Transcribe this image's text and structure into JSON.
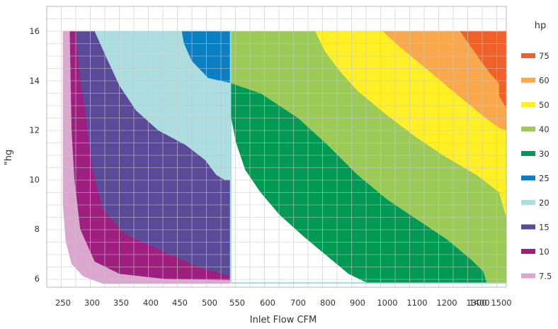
{
  "chart_data": {
    "type": "area",
    "title": "",
    "xlabel": "Inlet Flow CFM",
    "ylabel": "\"hg",
    "xlim": [
      230,
      1510
    ],
    "ylim": [
      5.6,
      16.9
    ],
    "x_ticks": [
      250,
      300,
      350,
      400,
      450,
      500,
      550,
      600,
      700,
      800,
      900,
      1000,
      1100,
      1200,
      1300,
      1400,
      1500
    ],
    "y_ticks": [
      6,
      8,
      10,
      12,
      14,
      16
    ],
    "grid": true,
    "legend_title": "hp",
    "legend_position": "right",
    "legend": [
      {
        "label": "75",
        "color": "#f0612a"
      },
      {
        "label": "60",
        "color": "#f9a94b"
      },
      {
        "label": "50",
        "color": "#fef025"
      },
      {
        "label": "40",
        "color": "#9cca57"
      },
      {
        "label": "30",
        "color": "#009a54"
      },
      {
        "label": "25",
        "color": "#0a7fc4"
      },
      {
        "label": "20",
        "color": "#acdde1"
      },
      {
        "label": "15",
        "color": "#5a4a97"
      },
      {
        "label": "10",
        "color": "#9e1f7f"
      },
      {
        "label": "7.5",
        "color": "#dba7ce"
      }
    ],
    "regions": [
      {
        "hp": "7.5",
        "color": "#dba7ce",
        "points": [
          [
            250,
            16
          ],
          [
            250,
            9
          ],
          [
            255,
            7.5
          ],
          [
            265,
            6.6
          ],
          [
            285,
            6.1
          ],
          [
            320,
            5.8
          ],
          [
            550,
            5.8
          ],
          [
            550,
            5.95
          ],
          [
            430,
            6.0
          ],
          [
            350,
            6.2
          ],
          [
            305,
            6.7
          ],
          [
            280,
            8
          ],
          [
            270,
            10
          ],
          [
            265,
            12
          ],
          [
            262,
            16
          ]
        ]
      },
      {
        "hp": "10",
        "color": "#9e1f7f",
        "points": [
          [
            262,
            16
          ],
          [
            265,
            12
          ],
          [
            270,
            10
          ],
          [
            280,
            8
          ],
          [
            305,
            6.7
          ],
          [
            350,
            6.2
          ],
          [
            430,
            6.0
          ],
          [
            550,
            5.95
          ],
          [
            550,
            6.1
          ],
          [
            490,
            6.5
          ],
          [
            420,
            7.2
          ],
          [
            360,
            7.8
          ],
          [
            320,
            8.8
          ],
          [
            300,
            10.5
          ],
          [
            290,
            12.5
          ],
          [
            280,
            14
          ],
          [
            272,
            16
          ]
        ]
      },
      {
        "hp": "15",
        "color": "#5a4a97",
        "points": [
          [
            272,
            16
          ],
          [
            280,
            14
          ],
          [
            290,
            12.5
          ],
          [
            300,
            10.5
          ],
          [
            320,
            8.8
          ],
          [
            360,
            7.8
          ],
          [
            420,
            7.2
          ],
          [
            490,
            6.5
          ],
          [
            550,
            6.1
          ],
          [
            550,
            10
          ],
          [
            540,
            10
          ],
          [
            525,
            10.2
          ],
          [
            505,
            10.8
          ],
          [
            470,
            11.4
          ],
          [
            420,
            12.0
          ],
          [
            380,
            12.8
          ],
          [
            350,
            13.8
          ],
          [
            325,
            15
          ],
          [
            305,
            16
          ]
        ]
      },
      {
        "hp": "25",
        "color": "#0a7fc4",
        "points": [
          [
            462,
            16
          ],
          [
            550,
            16
          ],
          [
            550,
            13.9
          ],
          [
            510,
            14.1
          ],
          [
            480,
            14.8
          ],
          [
            466,
            15.5
          ]
        ]
      },
      {
        "hp": "20",
        "color": "#acdde1",
        "points": [
          [
            305,
            16
          ],
          [
            462,
            16
          ],
          [
            466,
            15.5
          ],
          [
            480,
            14.8
          ],
          [
            510,
            14.1
          ],
          [
            550,
            13.9
          ],
          [
            550,
            16
          ],
          [
            552,
            16
          ],
          [
            552,
            5.8
          ],
          [
            1510,
            5.8
          ],
          [
            1510,
            5.85
          ],
          [
            550,
            5.85
          ],
          [
            550,
            10
          ],
          [
            540,
            10
          ],
          [
            525,
            10.2
          ],
          [
            505,
            10.8
          ],
          [
            470,
            11.4
          ],
          [
            420,
            12.0
          ],
          [
            380,
            12.8
          ],
          [
            350,
            13.8
          ],
          [
            325,
            15
          ]
        ]
      },
      {
        "hp": "30",
        "color": "#009a54",
        "points": [
          [
            552,
            13.9
          ],
          [
            600,
            13.5
          ],
          [
            700,
            12.5
          ],
          [
            800,
            11.4
          ],
          [
            900,
            10.2
          ],
          [
            1000,
            9.2
          ],
          [
            1100,
            8.4
          ],
          [
            1200,
            7.6
          ],
          [
            1280,
            6.8
          ],
          [
            1330,
            6.3
          ],
          [
            1345,
            5.85
          ],
          [
            930,
            5.85
          ],
          [
            870,
            6.2
          ],
          [
            800,
            6.9
          ],
          [
            720,
            7.7
          ],
          [
            650,
            8.6
          ],
          [
            600,
            9.5
          ],
          [
            575,
            10.4
          ],
          [
            560,
            11.5
          ],
          [
            552,
            12.5
          ]
        ]
      },
      {
        "hp": "40",
        "color": "#9cca57",
        "points": [
          [
            552,
            16
          ],
          [
            758,
            16
          ],
          [
            790,
            15.2
          ],
          [
            840,
            14.4
          ],
          [
            900,
            13.6
          ],
          [
            1000,
            12.6
          ],
          [
            1100,
            11.7
          ],
          [
            1200,
            10.9
          ],
          [
            1300,
            10.2
          ],
          [
            1400,
            9.5
          ],
          [
            1510,
            8.5
          ],
          [
            1510,
            5.85
          ],
          [
            1345,
            5.85
          ],
          [
            1330,
            6.3
          ],
          [
            1280,
            6.8
          ],
          [
            1200,
            7.6
          ],
          [
            1100,
            8.4
          ],
          [
            1000,
            9.2
          ],
          [
            900,
            10.2
          ],
          [
            800,
            11.4
          ],
          [
            700,
            12.5
          ],
          [
            600,
            13.5
          ],
          [
            552,
            13.9
          ]
        ]
      },
      {
        "hp": "50",
        "color": "#fef025",
        "points": [
          [
            758,
            16
          ],
          [
            985,
            16
          ],
          [
            1040,
            15.4
          ],
          [
            1100,
            14.8
          ],
          [
            1160,
            14.2
          ],
          [
            1220,
            13.6
          ],
          [
            1280,
            13.0
          ],
          [
            1340,
            12.5
          ],
          [
            1400,
            12.1
          ],
          [
            1510,
            12.0
          ],
          [
            1510,
            8.5
          ],
          [
            1400,
            9.5
          ],
          [
            1300,
            10.2
          ],
          [
            1200,
            10.9
          ],
          [
            1100,
            11.7
          ],
          [
            1000,
            12.6
          ],
          [
            900,
            13.6
          ],
          [
            840,
            14.4
          ],
          [
            790,
            15.2
          ]
        ]
      },
      {
        "hp": "60",
        "color": "#f9a94b",
        "points": [
          [
            985,
            16
          ],
          [
            1245,
            16
          ],
          [
            1280,
            15.4
          ],
          [
            1320,
            14.8
          ],
          [
            1360,
            14.3
          ],
          [
            1400,
            13.9
          ],
          [
            1450,
            13.4
          ],
          [
            1510,
            12.9
          ],
          [
            1510,
            12.0
          ],
          [
            1400,
            12.1
          ],
          [
            1340,
            12.5
          ],
          [
            1280,
            13.0
          ],
          [
            1220,
            13.6
          ],
          [
            1160,
            14.2
          ],
          [
            1100,
            14.8
          ],
          [
            1040,
            15.4
          ]
        ]
      },
      {
        "hp": "75",
        "color": "#f0612a",
        "points": [
          [
            1245,
            16
          ],
          [
            1510,
            16
          ],
          [
            1510,
            12.9
          ],
          [
            1450,
            13.4
          ],
          [
            1400,
            13.9
          ],
          [
            1360,
            14.3
          ],
          [
            1320,
            14.8
          ],
          [
            1280,
            15.4
          ]
        ]
      }
    ]
  }
}
